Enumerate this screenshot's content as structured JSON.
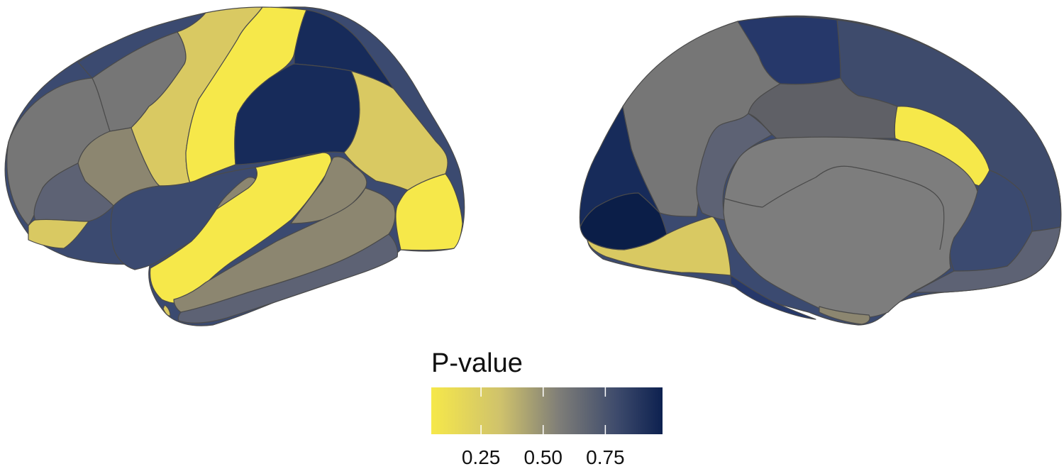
{
  "legend": {
    "title": "P-value",
    "ticks": [
      {
        "value": 0.25,
        "label": "0.25"
      },
      {
        "value": 0.5,
        "label": "0.50"
      },
      {
        "value": 0.75,
        "label": "0.75"
      }
    ],
    "range": [
      0.05,
      0.98
    ],
    "gradient": [
      "#f6e84a",
      "#d6c96a",
      "#7e7d77",
      "#3d4a6a",
      "#0f2250"
    ]
  },
  "colors": {
    "yellow": "#f6e84a",
    "khaki": "#d9c962",
    "tan": "#8c8670",
    "grey": "#767676",
    "slate": "#5d6274",
    "steel": "#4a5575",
    "blue": "#3b4a70",
    "navy": "#26386a",
    "darknavy": "#172b5a",
    "deepest": "#0b1e48"
  }
}
